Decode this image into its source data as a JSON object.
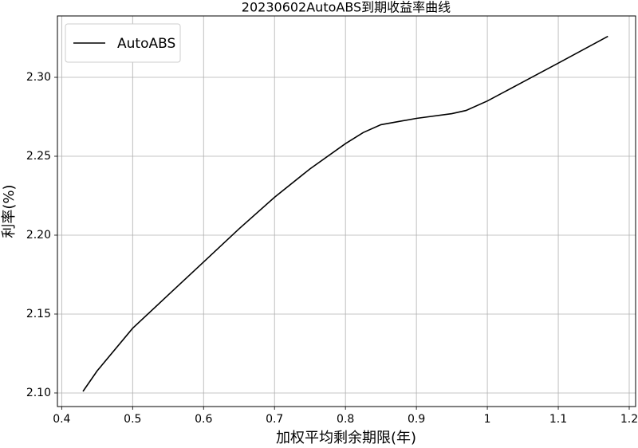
{
  "chart_data": {
    "type": "line",
    "title": "20230602AutoABS到期收益率曲线",
    "xlabel": "加权平均剩余期限(年)",
    "ylabel": "利率(%)",
    "x": [
      0.43,
      0.45,
      0.5,
      0.55,
      0.6,
      0.65,
      0.7,
      0.75,
      0.8,
      0.825,
      0.85,
      0.875,
      0.9,
      0.95,
      0.97,
      1.0,
      1.05,
      1.1,
      1.17
    ],
    "series": [
      {
        "name": "AutoABS",
        "color": "#000000",
        "values": [
          2.101,
          2.114,
          2.141,
          2.162,
          2.183,
          2.204,
          2.224,
          2.242,
          2.258,
          2.265,
          2.27,
          2.272,
          2.274,
          2.277,
          2.279,
          2.285,
          2.297,
          2.309,
          2.326
        ]
      }
    ],
    "xlim": [
      0.394,
      1.209
    ],
    "ylim": [
      2.0914,
      2.3389
    ],
    "xticks": [
      0.4,
      0.5,
      0.6,
      0.7,
      0.8,
      0.9,
      1.0,
      1.1,
      1.2
    ],
    "yticks": [
      {
        "value": 2.1,
        "label": "2.10"
      },
      2.15,
      {
        "value": 2.2,
        "label": "2.20"
      },
      2.25,
      {
        "value": 2.3,
        "label": "2.30"
      }
    ],
    "grid": true,
    "legend": "upper-left"
  }
}
